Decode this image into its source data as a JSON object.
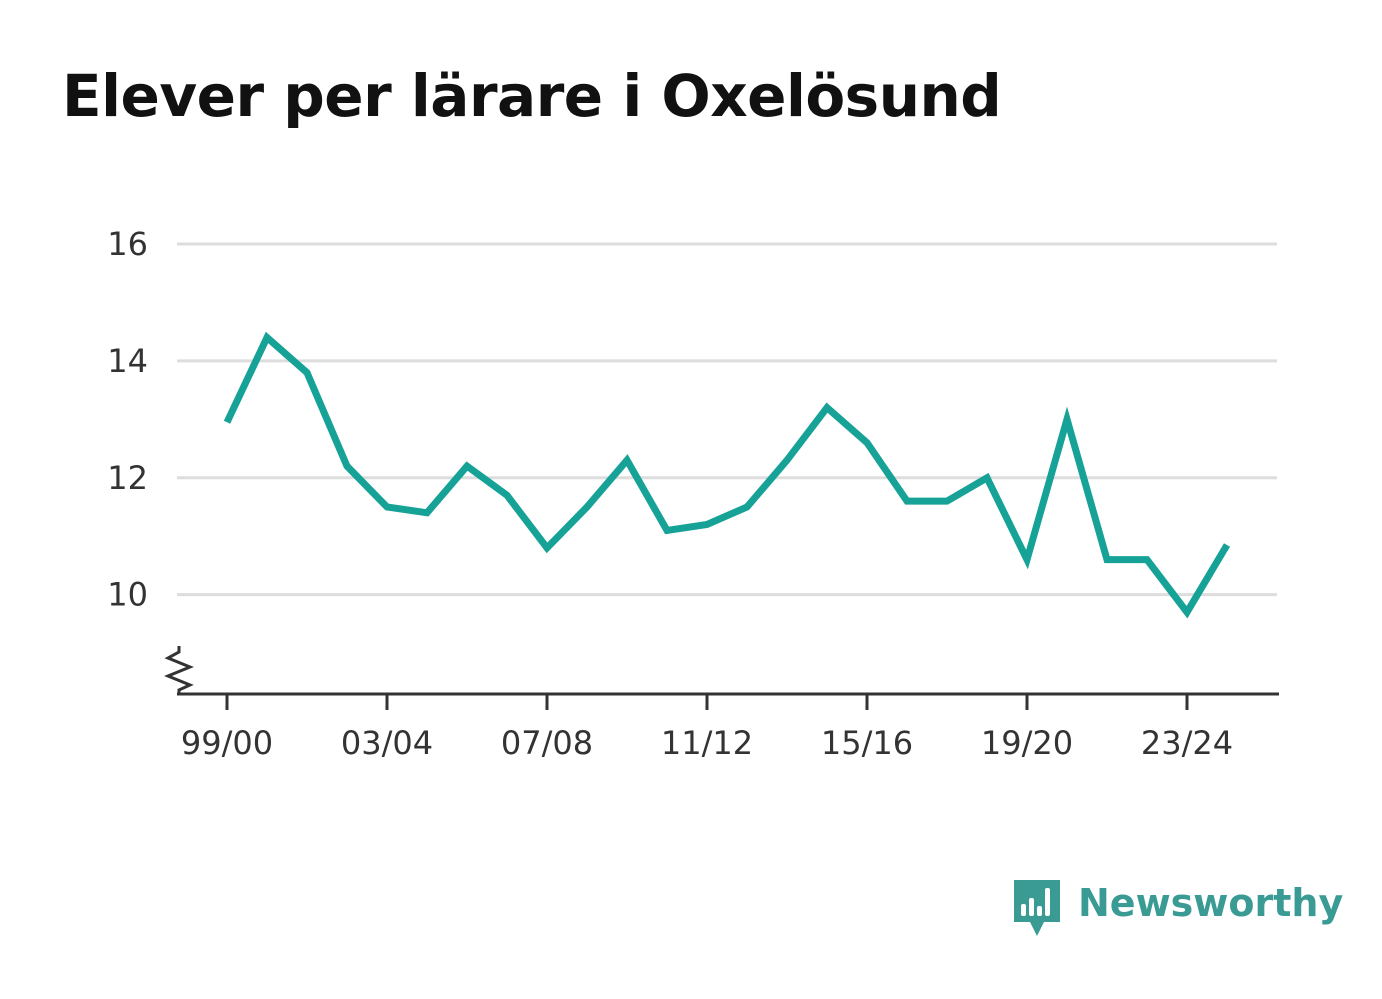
{
  "title": "Elever per lärare i Oxelösund",
  "brand": {
    "name": "Newsworthy",
    "color": "#3a9a94",
    "icon": "bar-chart-speech-bubble-icon"
  },
  "chart_data": {
    "type": "line",
    "title": "Elever per lärare i Oxelösund",
    "xlabel": "",
    "ylabel": "",
    "x": [
      "99/00",
      "00/01",
      "01/02",
      "02/03",
      "03/04",
      "04/05",
      "05/06",
      "06/07",
      "07/08",
      "08/09",
      "09/10",
      "10/11",
      "11/12",
      "12/13",
      "13/14",
      "14/15",
      "15/16",
      "16/17",
      "17/18",
      "18/19",
      "19/20",
      "20/21",
      "21/22",
      "22/23",
      "23/24",
      "24/25"
    ],
    "x_tick_labels": [
      "99/00",
      "03/04",
      "07/08",
      "11/12",
      "15/16",
      "19/20",
      "23/24"
    ],
    "series": [
      {
        "values": [
          12.95,
          14.4,
          13.8,
          12.2,
          11.5,
          11.4,
          12.2,
          11.7,
          10.8,
          11.5,
          12.3,
          11.1,
          11.2,
          11.5,
          12.3,
          13.2,
          12.6,
          11.6,
          11.6,
          12.0,
          10.6,
          13.0,
          10.6,
          10.6,
          9.7,
          10.85
        ],
        "color": "#16a296"
      }
    ],
    "yticks": [
      10,
      12,
      14,
      16
    ],
    "ylim": [
      8.3,
      16
    ],
    "y_axis_break": true,
    "grid": true,
    "grid_color": "#dddddd",
    "legend": "none"
  }
}
